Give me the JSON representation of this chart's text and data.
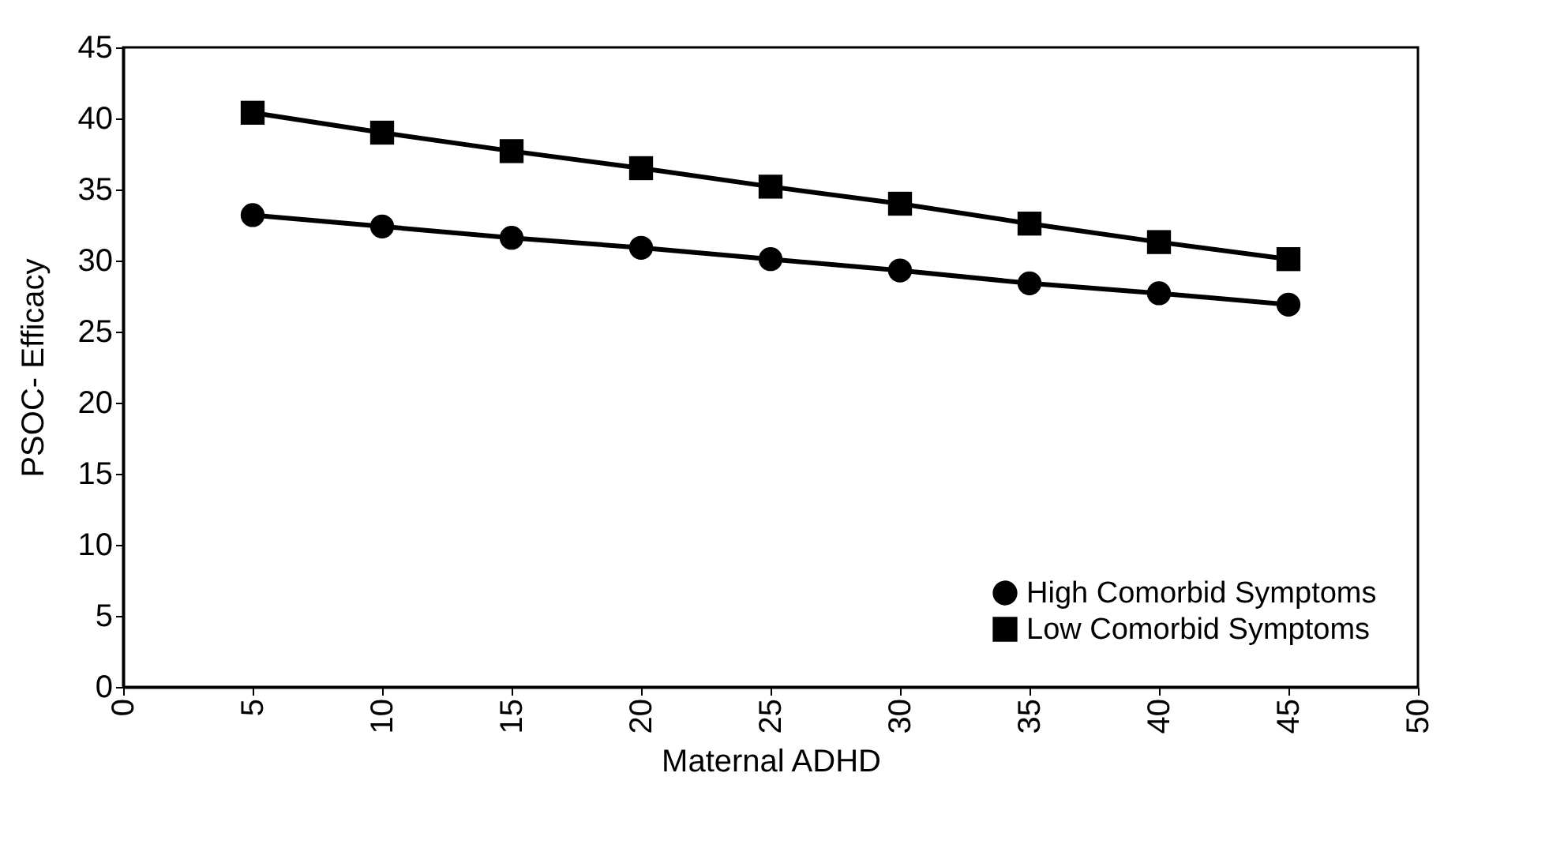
{
  "chart_data": {
    "type": "line",
    "xlabel": "Maternal ADHD",
    "ylabel": "PSOC- Efficacy",
    "x": [
      5,
      10,
      15,
      20,
      25,
      30,
      35,
      40,
      45
    ],
    "series": [
      {
        "name": "High Comorbid Symptoms",
        "color": "#000000",
        "marker": "circle",
        "values": [
          33.2,
          32.4,
          31.6,
          30.9,
          30.1,
          29.3,
          28.4,
          27.7,
          26.9
        ]
      },
      {
        "name": "Low Comorbid Symptoms",
        "color": "#000000",
        "marker": "square",
        "values": [
          40.4,
          39.0,
          37.7,
          36.5,
          35.2,
          34.0,
          32.6,
          31.3,
          30.1
        ]
      }
    ],
    "xlim": [
      0,
      50
    ],
    "xticks": [
      0,
      5,
      10,
      15,
      20,
      25,
      30,
      35,
      40,
      45,
      50
    ],
    "ylim": [
      0,
      45
    ],
    "yticks": [
      0,
      5,
      10,
      15,
      20,
      25,
      30,
      35,
      40,
      45
    ],
    "grid": false,
    "legend": "bottom right",
    "line_style": "solid"
  }
}
